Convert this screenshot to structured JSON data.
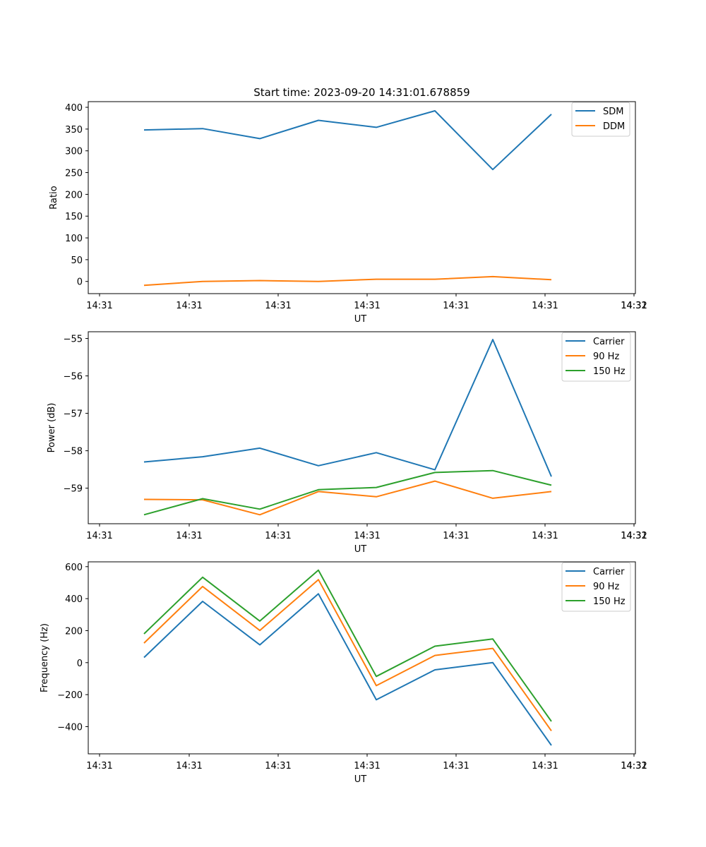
{
  "chart_data": [
    {
      "type": "line",
      "title": "Start time: 2023-09-20 14:31:01.678859",
      "xlabel": "UT",
      "ylabel": "Ratio",
      "x_tick_labels": [
        "14:31",
        "14:31",
        "14:31",
        "14:31",
        "14:31",
        "14:31",
        "14:31",
        "14:32"
      ],
      "y_tick_labels": [
        "0",
        "50",
        "100",
        "150",
        "200",
        "250",
        "300",
        "350",
        "400"
      ],
      "y_ticks": [
        0,
        50,
        100,
        150,
        200,
        250,
        300,
        350,
        400
      ],
      "ylim": [
        -28,
        413
      ],
      "legend_position": "top-right",
      "series": [
        {
          "name": "SDM",
          "color": "#1f77b4",
          "values": [
            348,
            351,
            328,
            370,
            354,
            392,
            257,
            384
          ]
        },
        {
          "name": "DDM",
          "color": "#ff7f0e",
          "values": [
            -9,
            0,
            2,
            0,
            5,
            5,
            11,
            4
          ]
        }
      ]
    },
    {
      "type": "line",
      "title": "",
      "xlabel": "UT",
      "ylabel": "Power (dB)",
      "x_tick_labels": [
        "14:31",
        "14:31",
        "14:31",
        "14:31",
        "14:31",
        "14:31",
        "14:31",
        "14:32"
      ],
      "y_tick_labels": [
        "−59",
        "−58",
        "−57",
        "−56",
        "−55"
      ],
      "y_ticks": [
        -59,
        -58,
        -57,
        -56,
        -55
      ],
      "ylim": [
        -59.95,
        -54.82
      ],
      "legend_position": "top-right",
      "series": [
        {
          "name": "Carrier",
          "color": "#1f77b4",
          "values": [
            -58.3,
            -58.16,
            -57.93,
            -58.4,
            -58.05,
            -58.51,
            -55.03,
            -58.69
          ]
        },
        {
          "name": "90 Hz",
          "color": "#ff7f0e",
          "values": [
            -59.3,
            -59.31,
            -59.71,
            -59.09,
            -59.23,
            -58.81,
            -59.27,
            -59.09
          ]
        },
        {
          "name": "150 Hz",
          "color": "#2ca02c",
          "values": [
            -59.71,
            -59.28,
            -59.56,
            -59.04,
            -58.98,
            -58.58,
            -58.53,
            -58.92
          ]
        }
      ]
    },
    {
      "type": "line",
      "title": "",
      "xlabel": "UT",
      "ylabel": "Frequency (Hz)",
      "x_tick_labels": [
        "14:31",
        "14:31",
        "14:31",
        "14:31",
        "14:31",
        "14:31",
        "14:31",
        "14:32"
      ],
      "y_tick_labels": [
        "−400",
        "−200",
        "0",
        "200",
        "400",
        "600"
      ],
      "y_ticks": [
        -400,
        -200,
        0,
        200,
        400,
        600
      ],
      "ylim": [
        -570,
        630
      ],
      "legend_position": "top-right",
      "series": [
        {
          "name": "Carrier",
          "color": "#1f77b4",
          "values": [
            32,
            383,
            111,
            430,
            -232,
            -45,
            0,
            -517
          ]
        },
        {
          "name": "90 Hz",
          "color": "#ff7f0e",
          "values": [
            122,
            476,
            201,
            519,
            -144,
            45,
            89,
            -426
          ]
        },
        {
          "name": "150 Hz",
          "color": "#2ca02c",
          "values": [
            180,
            534,
            260,
            578,
            -86,
            103,
            148,
            -367
          ]
        }
      ]
    }
  ]
}
